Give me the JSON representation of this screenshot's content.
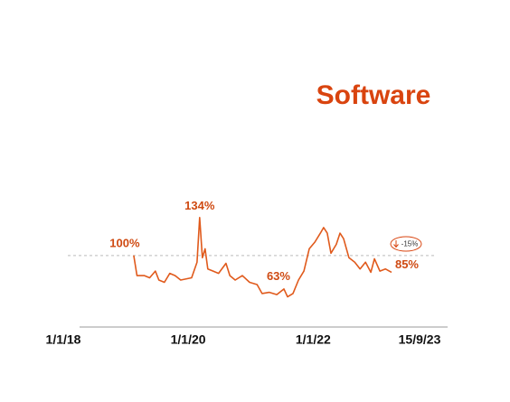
{
  "chart_data": {
    "type": "line",
    "title": "Software",
    "x": [
      "2019-02-17",
      "2019-03-08",
      "2019-04-20",
      "2019-05-21",
      "2019-06-23",
      "2019-07-14",
      "2019-08-15",
      "2019-09-16",
      "2019-10-17",
      "2019-11-18",
      "2020-01-21",
      "2020-02-22",
      "2020-03-08",
      "2020-03-24",
      "2020-04-09",
      "2020-04-25",
      "2020-05-26",
      "2020-06-27",
      "2020-08-09",
      "2020-09-01",
      "2020-10-02",
      "2020-11-13",
      "2020-12-25",
      "2021-02-07",
      "2021-03-08",
      "2021-04-20",
      "2021-06-02",
      "2021-07-14",
      "2021-08-04",
      "2021-09-05",
      "2021-10-07",
      "2021-11-08",
      "2021-12-09",
      "2022-01-11",
      "2022-02-12",
      "2022-03-03",
      "2022-03-24",
      "2022-04-15",
      "2022-05-16",
      "2022-06-07",
      "2022-06-28",
      "2022-07-29",
      "2022-09-01",
      "2022-10-02",
      "2022-11-03",
      "2022-12-04",
      "2022-12-25",
      "2023-01-26",
      "2023-02-27",
      "2023-04-04"
    ],
    "series": [
      {
        "name": "Software",
        "color": "#e05a1c",
        "values": [
          100,
          82,
          82,
          80,
          86,
          78,
          76,
          84,
          82,
          78,
          80,
          94,
          134,
          98,
          106,
          88,
          86,
          84,
          93,
          82,
          78,
          82,
          76,
          74,
          66,
          67,
          65,
          70,
          63,
          66,
          78,
          86,
          106,
          112,
          120,
          125,
          120,
          102,
          110,
          120,
          115,
          98,
          94,
          88,
          94,
          85,
          97,
          86,
          88,
          85
        ],
        "value_labels": [
          "100%",
          null,
          null,
          null,
          null,
          null,
          null,
          null,
          null,
          null,
          null,
          null,
          "134%",
          null,
          null,
          null,
          null,
          null,
          null,
          null,
          null,
          null,
          null,
          null,
          null,
          null,
          null,
          null,
          "63%",
          null,
          null,
          null,
          null,
          null,
          null,
          null,
          null,
          null,
          null,
          null,
          null,
          null,
          null,
          null,
          null,
          null,
          null,
          null,
          null,
          "85%"
        ]
      }
    ],
    "xlim": [
      "2018-01-01",
      "2023-09-15"
    ],
    "xticks": [
      {
        "value": "2018-01-01",
        "label": "1/1/18"
      },
      {
        "value": "2020-01-01",
        "label": "1/1/20"
      },
      {
        "value": "2022-01-01",
        "label": "1/1/22"
      },
      {
        "value": "2023-09-15",
        "label": "15/9/23"
      }
    ],
    "ylim": [
      40,
      150
    ],
    "reference_line": 100,
    "change_label": "-15%"
  }
}
